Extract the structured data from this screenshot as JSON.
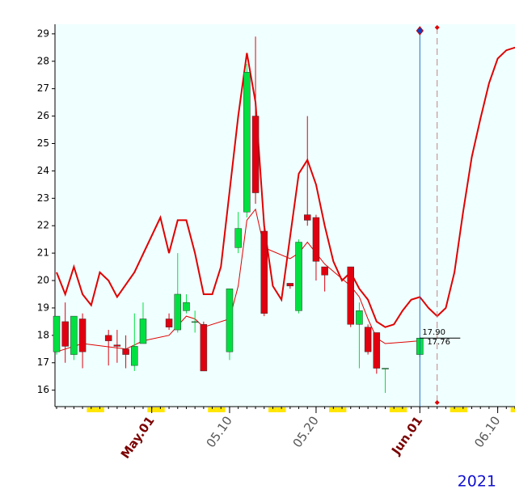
{
  "chart_data": {
    "type": "candlestick",
    "year_label": "2021",
    "x": [
      "04.20",
      "04.21",
      "04.22",
      "04.23",
      "04.26",
      "04.27",
      "04.28",
      "04.29",
      "04.30",
      "05.03",
      "05.04",
      "05.05",
      "05.06",
      "05.07",
      "05.10",
      "05.11",
      "05.12",
      "05.13",
      "05.14",
      "05.17",
      "05.18",
      "05.19",
      "05.20",
      "05.21",
      "05.24",
      "05.25",
      "05.26",
      "05.27",
      "05.28",
      "06.01"
    ],
    "open": [
      17.4,
      18.5,
      17.3,
      18.6,
      18.0,
      17.65,
      17.5,
      16.9,
      17.7,
      18.6,
      18.2,
      18.9,
      18.5,
      18.4,
      17.4,
      21.2,
      22.5,
      26.0,
      21.8,
      19.9,
      18.9,
      22.4,
      22.3,
      20.5,
      20.5,
      18.4,
      18.3,
      18.1,
      16.8,
      17.3
    ],
    "high": [
      18.7,
      19.2,
      18.7,
      18.8,
      18.2,
      18.2,
      18.0,
      18.8,
      19.2,
      18.8,
      21.0,
      19.5,
      18.9,
      18.5,
      19.7,
      22.5,
      27.9,
      28.9,
      21.9,
      19.9,
      21.5,
      26.0,
      22.4,
      20.5,
      20.5,
      19.2,
      18.4,
      18.1,
      16.8,
      17.9
    ],
    "low": [
      17.3,
      17.0,
      17.1,
      16.8,
      16.9,
      17.0,
      16.8,
      16.7,
      17.7,
      18.2,
      18.1,
      18.8,
      18.1,
      16.7,
      17.1,
      21.0,
      22.3,
      22.8,
      18.7,
      19.7,
      18.8,
      22.0,
      20.0,
      19.6,
      18.3,
      16.8,
      17.3,
      16.6,
      15.9,
      17.2
    ],
    "close": [
      18.7,
      17.6,
      18.7,
      17.4,
      17.8,
      17.6,
      17.3,
      17.6,
      18.6,
      18.3,
      19.5,
      19.2,
      18.5,
      16.7,
      19.7,
      21.9,
      27.6,
      23.2,
      18.8,
      19.8,
      21.4,
      22.2,
      20.7,
      20.2,
      18.4,
      18.9,
      17.4,
      16.8,
      16.8,
      17.9
    ],
    "up_color": "#00e040",
    "down_color": "#e00010",
    "lines": [
      {
        "color": "#e00000",
        "width": 2,
        "x": [
          "04.20",
          "04.21",
          "04.22",
          "04.23",
          "04.24",
          "04.25",
          "04.26",
          "04.27",
          "04.29",
          "05.02",
          "05.03",
          "05.04",
          "05.05",
          "05.06",
          "05.07",
          "05.08",
          "05.09",
          "05.11",
          "05.12",
          "05.13",
          "05.14",
          "05.15",
          "05.16",
          "05.18",
          "05.19",
          "05.20",
          "05.21",
          "05.22",
          "05.23",
          "05.24",
          "05.25",
          "05.26",
          "05.27",
          "05.28",
          "05.29",
          "05.30",
          "05.31",
          "06.01",
          "06.02",
          "06.03",
          "06.04",
          "06.05",
          "06.06",
          "06.07",
          "06.08",
          "06.09",
          "06.10",
          "06.11",
          "06.12"
        ],
        "values": [
          20.3,
          19.5,
          20.5,
          19.5,
          19.1,
          20.3,
          20.0,
          19.4,
          20.3,
          22.3,
          21.0,
          22.2,
          22.2,
          21.0,
          19.5,
          19.5,
          20.5,
          26.0,
          28.3,
          26.5,
          22.0,
          19.8,
          19.3,
          23.9,
          24.4,
          23.5,
          22.0,
          20.7,
          20.0,
          20.3,
          19.7,
          19.3,
          18.5,
          18.3,
          18.4,
          18.9,
          19.3,
          19.4,
          19.0,
          18.7,
          19.0,
          20.3,
          22.5,
          24.5,
          25.9,
          27.2,
          28.1,
          28.4,
          28.5
        ]
      },
      {
        "color": "#e00000",
        "width": 1,
        "x": [
          "04.20",
          "04.23",
          "04.28",
          "04.30",
          "05.03",
          "05.05",
          "05.06",
          "05.07",
          "05.10",
          "05.11",
          "05.12",
          "05.13",
          "05.14",
          "05.17",
          "05.18",
          "05.19",
          "05.20",
          "05.21",
          "05.24",
          "05.25",
          "05.26",
          "05.27",
          "05.28",
          "06.01"
        ],
        "values": [
          17.4,
          17.7,
          17.5,
          17.8,
          18.0,
          18.7,
          18.6,
          18.3,
          18.6,
          19.8,
          22.2,
          22.6,
          21.2,
          20.8,
          21.0,
          21.4,
          21.0,
          20.6,
          19.8,
          19.4,
          18.6,
          17.9,
          17.7,
          17.8
        ]
      }
    ],
    "price_labels": [
      "17.90",
      "17.76"
    ],
    "xlim": [
      "04.20",
      "06.12"
    ],
    "xticks": [
      {
        "value": "05.01",
        "label": "May.01",
        "color": "#7a0000"
      },
      {
        "value": "05.10",
        "label": "05.10",
        "color": "#555555"
      },
      {
        "value": "05.20",
        "label": "05.20",
        "color": "#555555"
      },
      {
        "value": "06.01",
        "label": "Jun.01",
        "color": "#7a0000"
      },
      {
        "value": "06.10",
        "label": "06.10",
        "color": "#555555"
      }
    ],
    "ylim": [
      15.4,
      29.35
    ],
    "yticks": [
      16,
      17,
      18,
      19,
      20,
      21,
      22,
      23,
      24,
      25,
      26,
      27,
      28,
      29
    ]
  }
}
